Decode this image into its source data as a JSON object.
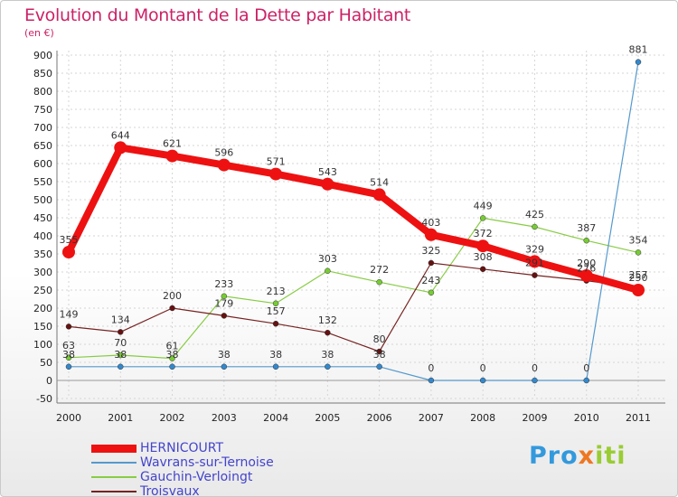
{
  "title": "Evolution du Montant de la Dette par Habitant",
  "subtitle": "(en €)",
  "logo": {
    "part1": "Pro",
    "part2": "x",
    "part3": "iti"
  },
  "chart_data": {
    "type": "line",
    "title": "Evolution du Montant de la Dette par Habitant",
    "ylabel": "(en €)",
    "xlabel": "",
    "x": [
      "2000",
      "2001",
      "2002",
      "2003",
      "2004",
      "2005",
      "2006",
      "2007",
      "2008",
      "2009",
      "2010",
      "2011"
    ],
    "ylim": [
      -50,
      900
    ],
    "yticks": [
      -50,
      0,
      50,
      100,
      150,
      200,
      250,
      300,
      350,
      400,
      450,
      500,
      550,
      600,
      650,
      700,
      750,
      800,
      850,
      900
    ],
    "grid": true,
    "legend_position": "bottom-left",
    "series": [
      {
        "name": "HERNICOURT",
        "color": "#ee1111",
        "values": [
          355,
          644,
          621,
          596,
          571,
          543,
          514,
          403,
          372,
          329,
          290,
          250
        ]
      },
      {
        "name": "Wavrans-sur-Ternoise",
        "color": "#5599cc",
        "values": [
          38,
          38,
          38,
          38,
          38,
          38,
          38,
          0,
          0,
          0,
          0,
          881
        ]
      },
      {
        "name": "Gauchin-Verloingt",
        "color": "#88cc44",
        "values": [
          63,
          70,
          61,
          233,
          213,
          303,
          272,
          243,
          449,
          425,
          387,
          354
        ]
      },
      {
        "name": "Troisvaux",
        "color": "#772222",
        "values": [
          149,
          134,
          200,
          179,
          157,
          132,
          80,
          325,
          308,
          291,
          276,
          257
        ]
      }
    ]
  }
}
